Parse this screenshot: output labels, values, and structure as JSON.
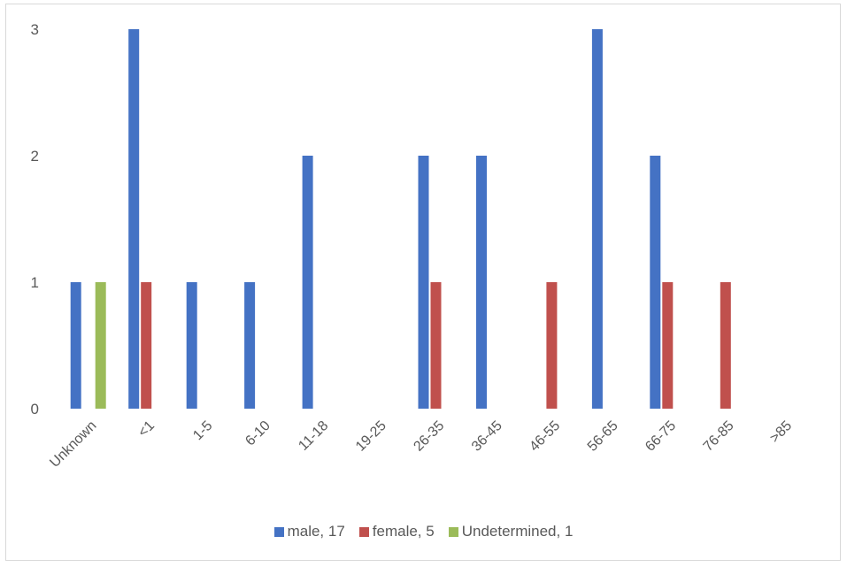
{
  "chart_data": {
    "type": "bar",
    "categories": [
      "Unknown",
      "<1",
      "1-5",
      "6-10",
      "11-18",
      "19-25",
      "26-35",
      "36-45",
      "46-55",
      "56-65",
      "66-75",
      "76-85",
      ">85"
    ],
    "series": [
      {
        "name": "male, 17",
        "color": "#4472C4",
        "values": [
          1,
          3,
          1,
          1,
          2,
          0,
          2,
          2,
          0,
          3,
          2,
          0,
          0
        ]
      },
      {
        "name": "female, 5",
        "color": "#C0504D",
        "values": [
          0,
          1,
          0,
          0,
          0,
          0,
          1,
          0,
          1,
          0,
          1,
          1,
          0
        ]
      },
      {
        "name": "Undetermined, 1",
        "color": "#9BBB59",
        "values": [
          1,
          0,
          0,
          0,
          0,
          0,
          0,
          0,
          0,
          0,
          0,
          0,
          0
        ]
      }
    ],
    "yticks": [
      "0",
      "1",
      "2",
      "3"
    ],
    "ylim": [
      0,
      3
    ],
    "grid": false,
    "legend_position": "bottom"
  }
}
